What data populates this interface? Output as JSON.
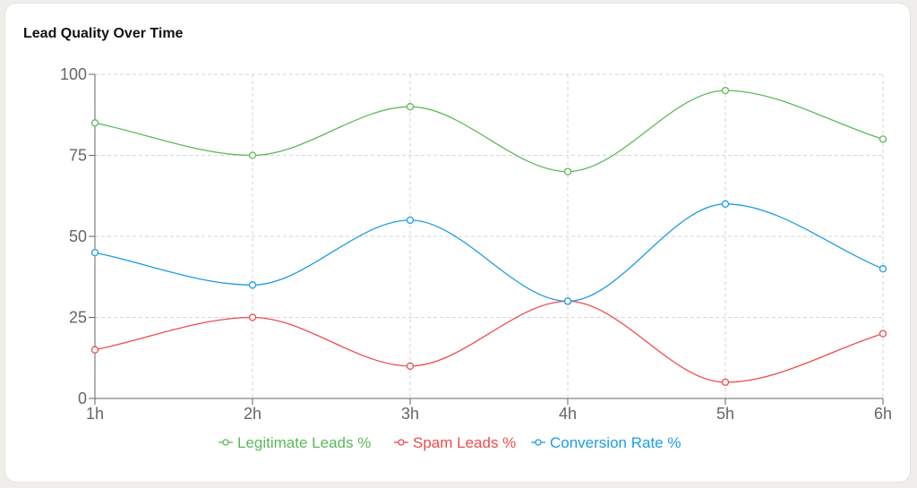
{
  "title": "Lead Quality Over Time",
  "chart_data": {
    "type": "line",
    "title": "Lead Quality Over Time",
    "categories": [
      "1h",
      "2h",
      "3h",
      "4h",
      "5h",
      "6h"
    ],
    "ylim": [
      0,
      100
    ],
    "yticks": [
      0,
      25,
      50,
      75,
      100
    ],
    "grid": true,
    "legend": "bottom",
    "series": [
      {
        "name": "Legitimate Leads %",
        "color": "#5cb85c",
        "values": [
          85,
          75,
          90,
          70,
          95,
          80
        ]
      },
      {
        "name": "Spam Leads %",
        "color": "#ee4b4b",
        "values": [
          15,
          25,
          10,
          30,
          5,
          20
        ]
      },
      {
        "name": "Conversion Rate %",
        "color": "#1e9be6",
        "values": [
          45,
          35,
          55,
          30,
          60,
          40
        ]
      }
    ]
  }
}
